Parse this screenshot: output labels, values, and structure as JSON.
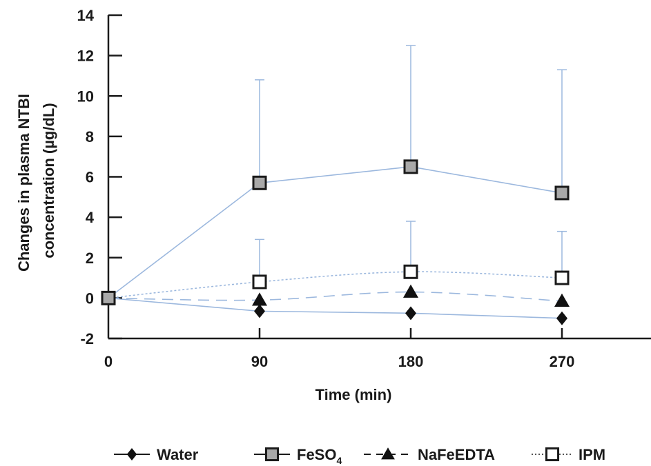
{
  "chart_data": {
    "type": "line",
    "title": "",
    "xlabel": "Time (min)",
    "ylabel_lines": [
      "Changes in plasma NTBI",
      "concentration (µg/dL)"
    ],
    "x": [
      0,
      90,
      180,
      270
    ],
    "x_tick_labels": [
      "0",
      "90",
      "180",
      "270"
    ],
    "xlim": [
      0,
      320
    ],
    "ylim": [
      -2,
      14
    ],
    "y_ticks": [
      -2,
      0,
      2,
      4,
      6,
      8,
      10,
      12,
      14
    ],
    "grid": false,
    "legend_position": "bottom",
    "series": [
      {
        "name": "Water",
        "marker": "diamond",
        "line_style": "solid",
        "line_color": "#9cb8de",
        "values": [
          0,
          -0.65,
          -0.75,
          -1.0
        ],
        "error_upper": [
          0,
          0,
          0,
          0
        ]
      },
      {
        "name": "FeSO₄",
        "name_base": "FeSO",
        "name_sub": "4",
        "marker": "square-gray",
        "line_style": "solid",
        "line_color": "#9cb8de",
        "values": [
          0,
          5.7,
          6.5,
          5.2
        ],
        "error_upper": [
          0,
          5.1,
          6.0,
          6.1
        ]
      },
      {
        "name": "NaFeEDTA",
        "marker": "triangle",
        "line_style": "dashed",
        "line_color": "#9cb8de",
        "values": [
          0,
          -0.1,
          0.3,
          -0.15
        ],
        "error_upper": [
          0,
          0,
          0,
          0
        ]
      },
      {
        "name": "IPM",
        "marker": "square-open",
        "line_style": "dotted",
        "line_color": "#9cb8de",
        "values": [
          0,
          0.8,
          1.3,
          1.0
        ],
        "error_upper": [
          0,
          2.1,
          2.5,
          2.3
        ]
      }
    ]
  }
}
